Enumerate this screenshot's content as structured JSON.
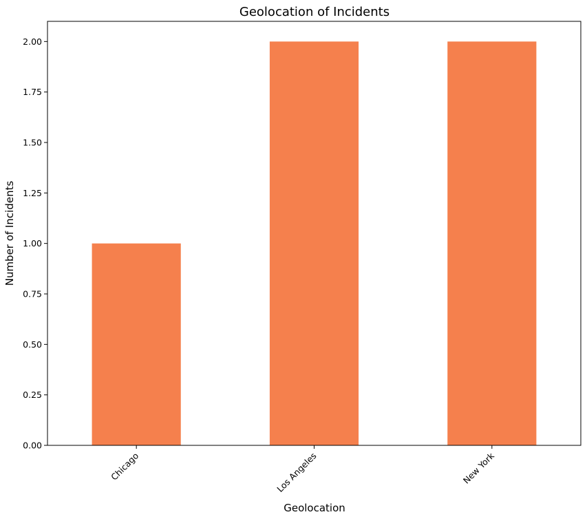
{
  "chart_data": {
    "type": "bar",
    "title": "Geolocation of Incidents",
    "xlabel": "Geolocation",
    "ylabel": "Number of Incidents",
    "categories": [
      "Chicago",
      "Los Angeles",
      "New York"
    ],
    "values": [
      1,
      2,
      2
    ],
    "ylim": [
      0,
      2.1
    ],
    "yticks": [
      "0.00",
      "0.25",
      "0.50",
      "0.75",
      "1.00",
      "1.25",
      "1.50",
      "1.75",
      "2.00"
    ],
    "ytick_values": [
      0,
      0.25,
      0.5,
      0.75,
      1.0,
      1.25,
      1.5,
      1.75,
      2.0
    ],
    "bar_color": "#f5804d",
    "grid": false,
    "legend": false
  }
}
